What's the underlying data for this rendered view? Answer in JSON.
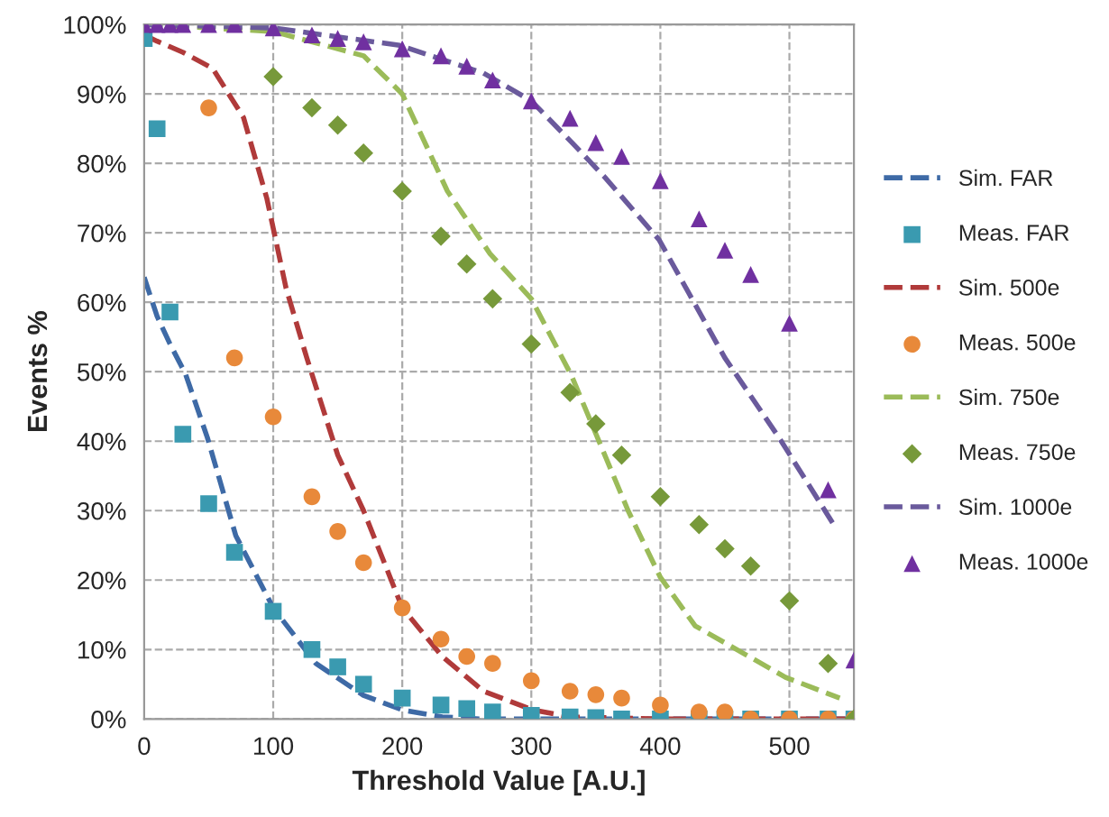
{
  "chart_data": {
    "type": "scatter",
    "xlabel": "Threshold Value [A.U.]",
    "ylabel": "Events %",
    "xlim": [
      0,
      550
    ],
    "xticks": [
      0,
      100,
      200,
      300,
      400,
      500
    ],
    "ylim": [
      0,
      100
    ],
    "yticks": [
      {
        "value": 0,
        "label": "0%"
      },
      {
        "value": 10,
        "label": "10%"
      },
      {
        "value": 20,
        "label": "20%"
      },
      {
        "value": 30,
        "label": "30%"
      },
      {
        "value": 40,
        "label": "40%"
      },
      {
        "value": 50,
        "label": "50%"
      },
      {
        "value": 60,
        "label": "60%"
      },
      {
        "value": 70,
        "label": "70%"
      },
      {
        "value": 80,
        "label": "80%"
      },
      {
        "value": 90,
        "label": "90%"
      },
      {
        "value": 100,
        "label": "100%"
      }
    ],
    "grid": true,
    "legend": "right",
    "series": [
      {
        "name": "Sim. FAR",
        "type": "line",
        "line_style": "dashed",
        "marker": "none",
        "color": "#3e6aa6",
        "x": [
          0,
          10,
          20,
          32,
          49,
          71,
          100,
          133,
          170,
          200,
          231,
          260,
          550
        ],
        "values": [
          63.6,
          58,
          54,
          49.7,
          40.5,
          26.4,
          16,
          8,
          3.4,
          1.3,
          0.3,
          0,
          0
        ]
      },
      {
        "name": "Meas. FAR",
        "marker": "square",
        "color": "#3a9ab0",
        "x": [
          0,
          10,
          20,
          30,
          50,
          70,
          100,
          130,
          150,
          170,
          200,
          230,
          250,
          270,
          300,
          330,
          350,
          370,
          400,
          430,
          450,
          470,
          500,
          530,
          550
        ],
        "values": [
          98,
          85,
          58.6,
          41,
          31,
          24,
          15.5,
          10,
          7.5,
          5,
          3,
          2,
          1.5,
          1,
          0.5,
          0.3,
          0.2,
          0,
          0,
          0,
          0,
          0,
          0,
          0,
          0
        ]
      },
      {
        "name": "Sim. 500e",
        "type": "line",
        "line_style": "dashed",
        "marker": "none",
        "color": "#b03a3a",
        "x": [
          0,
          10,
          30,
          53,
          77,
          95,
          110,
          126,
          150,
          170,
          200,
          231,
          263,
          301,
          330,
          400,
          550
        ],
        "values": [
          98.5,
          97.6,
          96,
          93.7,
          86.6,
          75,
          62,
          52,
          38,
          30,
          16,
          9,
          4,
          1.3,
          0.3,
          0,
          0
        ]
      },
      {
        "name": "Meas. 500e",
        "marker": "circle",
        "color": "#e8893a",
        "x": [
          50,
          70,
          100,
          130,
          150,
          170,
          200,
          230,
          250,
          270,
          300,
          330,
          350,
          370,
          400,
          430,
          450,
          470,
          500,
          530,
          550
        ],
        "values": [
          88,
          52,
          43.5,
          32,
          27,
          22.5,
          16,
          11.5,
          9,
          8,
          5.5,
          4,
          3.5,
          3,
          2,
          1,
          1,
          0,
          0,
          0,
          0
        ]
      },
      {
        "name": "Sim. 750e",
        "type": "line",
        "line_style": "dashed",
        "marker": "none",
        "color": "#9bbb59",
        "x": [
          0,
          100,
          170,
          200,
          235,
          268,
          300,
          331,
          375,
          400,
          427,
          497,
          539
        ],
        "values": [
          100,
          99,
          95.5,
          90,
          76,
          67,
          60.5,
          49.5,
          30,
          20.4,
          13.4,
          6,
          3
        ]
      },
      {
        "name": "Meas. 750e",
        "marker": "diamond",
        "color": "#77993a",
        "x": [
          100,
          130,
          150,
          170,
          200,
          230,
          250,
          270,
          300,
          330,
          350,
          370,
          400,
          430,
          450,
          470,
          500,
          530,
          550
        ],
        "values": [
          92.5,
          88,
          85.5,
          81.5,
          76,
          69.5,
          65.5,
          60.5,
          54,
          47,
          42.5,
          38,
          32,
          28,
          24.5,
          22,
          17,
          8,
          0
        ]
      },
      {
        "name": "Sim. 1000e",
        "type": "line",
        "line_style": "dashed",
        "marker": "none",
        "color": "#6a5a9c",
        "x": [
          0,
          100,
          198,
          263,
          300,
          333,
          357,
          399,
          450,
          492,
          536
        ],
        "values": [
          100,
          99.5,
          97,
          93,
          89,
          82.7,
          78,
          69,
          52,
          40.5,
          27.5
        ]
      },
      {
        "name": "Meas. 1000e",
        "marker": "triangle",
        "color": "#7030a0",
        "x": [
          0,
          10,
          20,
          30,
          50,
          70,
          100,
          130,
          150,
          170,
          200,
          230,
          250,
          270,
          300,
          330,
          350,
          370,
          400,
          430,
          450,
          470,
          500,
          530,
          550
        ],
        "values": [
          100,
          100,
          100,
          100,
          100,
          100,
          99.5,
          98.5,
          98,
          97.5,
          96.5,
          95.5,
          94,
          92,
          89,
          86.5,
          83,
          81,
          77.5,
          72,
          67.5,
          64,
          57,
          33,
          8.5
        ]
      }
    ]
  }
}
